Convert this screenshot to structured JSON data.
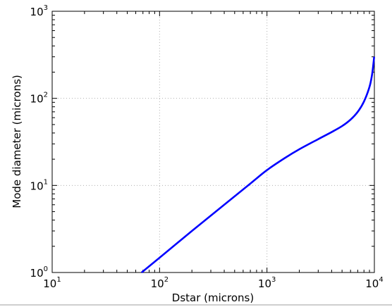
{
  "chart_data": {
    "type": "line",
    "title": "",
    "xlabel": "Dstar (microns)",
    "ylabel": "Mode diameter (microns)",
    "xscale": "log",
    "yscale": "log",
    "xlim": [
      10,
      10000
    ],
    "ylim": [
      1,
      1000
    ],
    "grid": true,
    "legend": "none",
    "x_ticks": [
      {
        "base": "10",
        "exp": "1",
        "value": 10
      },
      {
        "base": "10",
        "exp": "2",
        "value": 100
      },
      {
        "base": "10",
        "exp": "3",
        "value": 1000
      },
      {
        "base": "10",
        "exp": "4",
        "value": 10000
      }
    ],
    "y_ticks": [
      {
        "base": "10",
        "exp": "0",
        "value": 1
      },
      {
        "base": "10",
        "exp": "1",
        "value": 10
      },
      {
        "base": "10",
        "exp": "2",
        "value": 100
      },
      {
        "base": "10",
        "exp": "3",
        "value": 1000
      }
    ],
    "series": [
      {
        "color": "#0000ff",
        "points": [
          {
            "x": 68,
            "y": 1.0
          },
          {
            "x": 100,
            "y": 1.48
          },
          {
            "x": 200,
            "y": 3.0
          },
          {
            "x": 400,
            "y": 6.0
          },
          {
            "x": 700,
            "y": 10.5
          },
          {
            "x": 1000,
            "y": 15.0
          },
          {
            "x": 1500,
            "y": 21.0
          },
          {
            "x": 2000,
            "y": 26.0
          },
          {
            "x": 3000,
            "y": 34.0
          },
          {
            "x": 4000,
            "y": 41.0
          },
          {
            "x": 5000,
            "y": 48.0
          },
          {
            "x": 6000,
            "y": 57.0
          },
          {
            "x": 7000,
            "y": 70.0
          },
          {
            "x": 8000,
            "y": 92.0
          },
          {
            "x": 9000,
            "y": 135.0
          },
          {
            "x": 9500,
            "y": 185.0
          },
          {
            "x": 9800,
            "y": 250.0
          },
          {
            "x": 9950,
            "y": 300.0
          }
        ]
      }
    ]
  }
}
